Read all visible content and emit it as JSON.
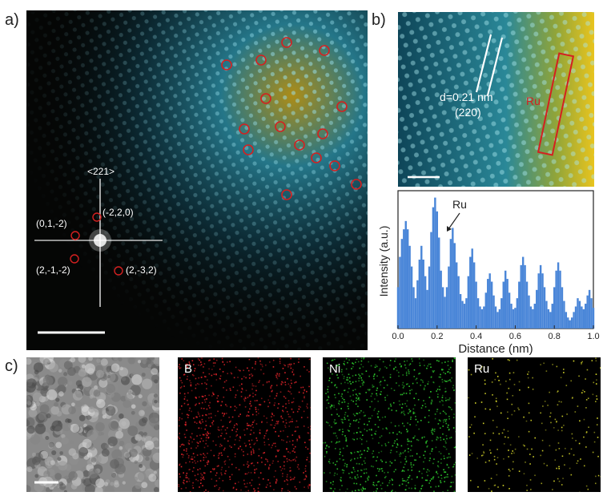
{
  "figure": {
    "panel_a": {
      "label": "a)",
      "fft_zone_axis": "<221>",
      "fft_spots": [
        "(-2,2,0)",
        "(0,1,-2)",
        "(2,-1,-2)",
        "(2,-3,2)"
      ]
    },
    "panel_b": {
      "label": "b)",
      "d_spacing": "d=0.21 nm",
      "plane": "(220)",
      "marker": "Ru"
    },
    "panel_c": {
      "label": "c)",
      "maps": [
        {
          "element": "",
          "color": "#ffffff"
        },
        {
          "element": "B",
          "color": "#e0242a"
        },
        {
          "element": "Ni",
          "color": "#2fd22f"
        },
        {
          "element": "Ru",
          "color": "#d8d82a"
        }
      ]
    }
  },
  "chart_data": {
    "type": "bar",
    "title": "",
    "annotation": "Ru",
    "annotation_x": 0.24,
    "xlabel": "Distance (nm)",
    "ylabel": "Intensity (a.u.)",
    "xlim": [
      0.0,
      1.0
    ],
    "ylim": [
      0,
      1
    ],
    "xticks": [
      "0.0",
      "0.2",
      "0.4",
      "0.6",
      "0.8",
      "1.0"
    ],
    "color": "#4a86d8",
    "x": [
      0.0,
      0.01,
      0.02,
      0.03,
      0.04,
      0.05,
      0.06,
      0.07,
      0.08,
      0.09,
      0.1,
      0.11,
      0.12,
      0.13,
      0.14,
      0.15,
      0.16,
      0.17,
      0.18,
      0.19,
      0.2,
      0.21,
      0.22,
      0.23,
      0.24,
      0.25,
      0.26,
      0.27,
      0.28,
      0.29,
      0.3,
      0.31,
      0.32,
      0.33,
      0.34,
      0.35,
      0.36,
      0.37,
      0.38,
      0.39,
      0.4,
      0.41,
      0.42,
      0.43,
      0.44,
      0.45,
      0.46,
      0.47,
      0.48,
      0.49,
      0.5,
      0.51,
      0.52,
      0.53,
      0.54,
      0.55,
      0.56,
      0.57,
      0.58,
      0.59,
      0.6,
      0.61,
      0.62,
      0.63,
      0.64,
      0.65,
      0.66,
      0.67,
      0.68,
      0.69,
      0.7,
      0.71,
      0.72,
      0.73,
      0.74,
      0.75,
      0.76,
      0.77,
      0.78,
      0.79,
      0.8,
      0.81,
      0.82,
      0.83,
      0.84,
      0.85,
      0.86,
      0.87,
      0.88,
      0.89,
      0.9,
      0.91,
      0.92,
      0.93,
      0.94,
      0.95,
      0.96,
      0.97,
      0.98,
      0.99,
      1.0
    ],
    "values": [
      0.3,
      0.52,
      0.65,
      0.72,
      0.78,
      0.72,
      0.6,
      0.45,
      0.3,
      0.22,
      0.35,
      0.5,
      0.6,
      0.5,
      0.38,
      0.28,
      0.45,
      0.7,
      0.88,
      0.95,
      0.85,
      0.66,
      0.42,
      0.3,
      0.23,
      0.3,
      0.45,
      0.65,
      0.73,
      0.62,
      0.48,
      0.38,
      0.25,
      0.2,
      0.18,
      0.22,
      0.38,
      0.52,
      0.58,
      0.48,
      0.34,
      0.22,
      0.16,
      0.14,
      0.16,
      0.26,
      0.36,
      0.4,
      0.34,
      0.24,
      0.16,
      0.12,
      0.14,
      0.22,
      0.34,
      0.42,
      0.36,
      0.26,
      0.18,
      0.14,
      0.15,
      0.22,
      0.34,
      0.46,
      0.52,
      0.46,
      0.34,
      0.24,
      0.16,
      0.14,
      0.18,
      0.28,
      0.4,
      0.46,
      0.4,
      0.3,
      0.2,
      0.14,
      0.12,
      0.18,
      0.3,
      0.42,
      0.48,
      0.42,
      0.3,
      0.2,
      0.12,
      0.08,
      0.06,
      0.08,
      0.12,
      0.16,
      0.22,
      0.2,
      0.16,
      0.14,
      0.18,
      0.24,
      0.28,
      0.22,
      0.15
    ]
  }
}
